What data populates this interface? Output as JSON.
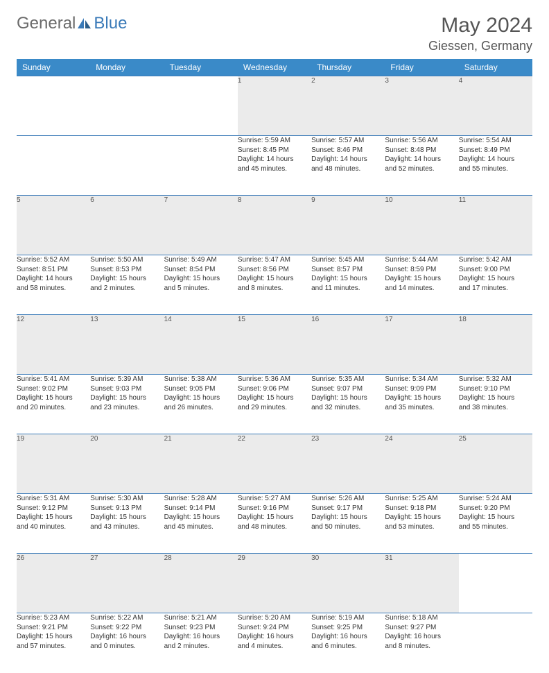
{
  "logo": {
    "text1": "General",
    "text2": "Blue"
  },
  "title": "May 2024",
  "location": "Giessen, Germany",
  "colors": {
    "header_bg": "#3a8ac8",
    "header_text": "#ffffff",
    "daynum_bg": "#ebebeb",
    "border": "#3a7ab8",
    "logo_gray": "#6a6a6a",
    "logo_blue": "#3a7ab8"
  },
  "weekdays": [
    "Sunday",
    "Monday",
    "Tuesday",
    "Wednesday",
    "Thursday",
    "Friday",
    "Saturday"
  ],
  "weeks": [
    [
      null,
      null,
      null,
      {
        "n": "1",
        "sr": "Sunrise: 5:59 AM",
        "ss": "Sunset: 8:45 PM",
        "d1": "Daylight: 14 hours",
        "d2": "and 45 minutes."
      },
      {
        "n": "2",
        "sr": "Sunrise: 5:57 AM",
        "ss": "Sunset: 8:46 PM",
        "d1": "Daylight: 14 hours",
        "d2": "and 48 minutes."
      },
      {
        "n": "3",
        "sr": "Sunrise: 5:56 AM",
        "ss": "Sunset: 8:48 PM",
        "d1": "Daylight: 14 hours",
        "d2": "and 52 minutes."
      },
      {
        "n": "4",
        "sr": "Sunrise: 5:54 AM",
        "ss": "Sunset: 8:49 PM",
        "d1": "Daylight: 14 hours",
        "d2": "and 55 minutes."
      }
    ],
    [
      {
        "n": "5",
        "sr": "Sunrise: 5:52 AM",
        "ss": "Sunset: 8:51 PM",
        "d1": "Daylight: 14 hours",
        "d2": "and 58 minutes."
      },
      {
        "n": "6",
        "sr": "Sunrise: 5:50 AM",
        "ss": "Sunset: 8:53 PM",
        "d1": "Daylight: 15 hours",
        "d2": "and 2 minutes."
      },
      {
        "n": "7",
        "sr": "Sunrise: 5:49 AM",
        "ss": "Sunset: 8:54 PM",
        "d1": "Daylight: 15 hours",
        "d2": "and 5 minutes."
      },
      {
        "n": "8",
        "sr": "Sunrise: 5:47 AM",
        "ss": "Sunset: 8:56 PM",
        "d1": "Daylight: 15 hours",
        "d2": "and 8 minutes."
      },
      {
        "n": "9",
        "sr": "Sunrise: 5:45 AM",
        "ss": "Sunset: 8:57 PM",
        "d1": "Daylight: 15 hours",
        "d2": "and 11 minutes."
      },
      {
        "n": "10",
        "sr": "Sunrise: 5:44 AM",
        "ss": "Sunset: 8:59 PM",
        "d1": "Daylight: 15 hours",
        "d2": "and 14 minutes."
      },
      {
        "n": "11",
        "sr": "Sunrise: 5:42 AM",
        "ss": "Sunset: 9:00 PM",
        "d1": "Daylight: 15 hours",
        "d2": "and 17 minutes."
      }
    ],
    [
      {
        "n": "12",
        "sr": "Sunrise: 5:41 AM",
        "ss": "Sunset: 9:02 PM",
        "d1": "Daylight: 15 hours",
        "d2": "and 20 minutes."
      },
      {
        "n": "13",
        "sr": "Sunrise: 5:39 AM",
        "ss": "Sunset: 9:03 PM",
        "d1": "Daylight: 15 hours",
        "d2": "and 23 minutes."
      },
      {
        "n": "14",
        "sr": "Sunrise: 5:38 AM",
        "ss": "Sunset: 9:05 PM",
        "d1": "Daylight: 15 hours",
        "d2": "and 26 minutes."
      },
      {
        "n": "15",
        "sr": "Sunrise: 5:36 AM",
        "ss": "Sunset: 9:06 PM",
        "d1": "Daylight: 15 hours",
        "d2": "and 29 minutes."
      },
      {
        "n": "16",
        "sr": "Sunrise: 5:35 AM",
        "ss": "Sunset: 9:07 PM",
        "d1": "Daylight: 15 hours",
        "d2": "and 32 minutes."
      },
      {
        "n": "17",
        "sr": "Sunrise: 5:34 AM",
        "ss": "Sunset: 9:09 PM",
        "d1": "Daylight: 15 hours",
        "d2": "and 35 minutes."
      },
      {
        "n": "18",
        "sr": "Sunrise: 5:32 AM",
        "ss": "Sunset: 9:10 PM",
        "d1": "Daylight: 15 hours",
        "d2": "and 38 minutes."
      }
    ],
    [
      {
        "n": "19",
        "sr": "Sunrise: 5:31 AM",
        "ss": "Sunset: 9:12 PM",
        "d1": "Daylight: 15 hours",
        "d2": "and 40 minutes."
      },
      {
        "n": "20",
        "sr": "Sunrise: 5:30 AM",
        "ss": "Sunset: 9:13 PM",
        "d1": "Daylight: 15 hours",
        "d2": "and 43 minutes."
      },
      {
        "n": "21",
        "sr": "Sunrise: 5:28 AM",
        "ss": "Sunset: 9:14 PM",
        "d1": "Daylight: 15 hours",
        "d2": "and 45 minutes."
      },
      {
        "n": "22",
        "sr": "Sunrise: 5:27 AM",
        "ss": "Sunset: 9:16 PM",
        "d1": "Daylight: 15 hours",
        "d2": "and 48 minutes."
      },
      {
        "n": "23",
        "sr": "Sunrise: 5:26 AM",
        "ss": "Sunset: 9:17 PM",
        "d1": "Daylight: 15 hours",
        "d2": "and 50 minutes."
      },
      {
        "n": "24",
        "sr": "Sunrise: 5:25 AM",
        "ss": "Sunset: 9:18 PM",
        "d1": "Daylight: 15 hours",
        "d2": "and 53 minutes."
      },
      {
        "n": "25",
        "sr": "Sunrise: 5:24 AM",
        "ss": "Sunset: 9:20 PM",
        "d1": "Daylight: 15 hours",
        "d2": "and 55 minutes."
      }
    ],
    [
      {
        "n": "26",
        "sr": "Sunrise: 5:23 AM",
        "ss": "Sunset: 9:21 PM",
        "d1": "Daylight: 15 hours",
        "d2": "and 57 minutes."
      },
      {
        "n": "27",
        "sr": "Sunrise: 5:22 AM",
        "ss": "Sunset: 9:22 PM",
        "d1": "Daylight: 16 hours",
        "d2": "and 0 minutes."
      },
      {
        "n": "28",
        "sr": "Sunrise: 5:21 AM",
        "ss": "Sunset: 9:23 PM",
        "d1": "Daylight: 16 hours",
        "d2": "and 2 minutes."
      },
      {
        "n": "29",
        "sr": "Sunrise: 5:20 AM",
        "ss": "Sunset: 9:24 PM",
        "d1": "Daylight: 16 hours",
        "d2": "and 4 minutes."
      },
      {
        "n": "30",
        "sr": "Sunrise: 5:19 AM",
        "ss": "Sunset: 9:25 PM",
        "d1": "Daylight: 16 hours",
        "d2": "and 6 minutes."
      },
      {
        "n": "31",
        "sr": "Sunrise: 5:18 AM",
        "ss": "Sunset: 9:27 PM",
        "d1": "Daylight: 16 hours",
        "d2": "and 8 minutes."
      },
      null
    ]
  ]
}
